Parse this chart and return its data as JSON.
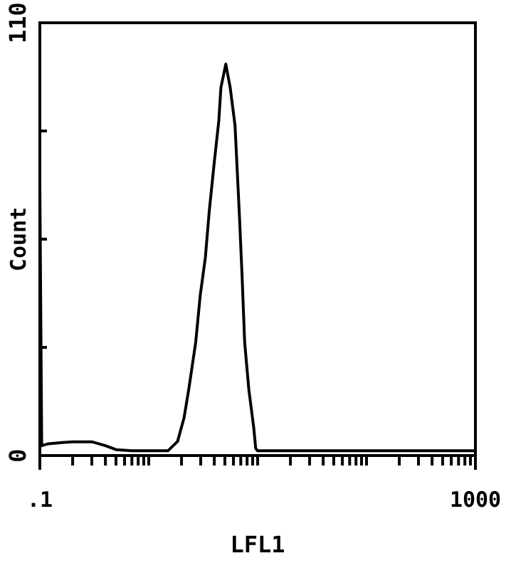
{
  "chart_data": {
    "type": "line",
    "xlabel": "LFL1",
    "ylabel": "Count",
    "log": "x",
    "xlim": [
      0.1,
      1000
    ],
    "ylim": [
      0,
      110
    ],
    "xticks": [
      {
        "value": 0.1,
        "label": ".1"
      },
      {
        "value": 0.2,
        "label": null
      },
      {
        "value": 0.3,
        "label": null
      },
      {
        "value": 0.4,
        "label": null
      },
      {
        "value": 0.5,
        "label": null
      },
      {
        "value": 0.6,
        "label": null
      },
      {
        "value": 0.7,
        "label": null
      },
      {
        "value": 0.8,
        "label": null
      },
      {
        "value": 0.9,
        "label": null
      },
      {
        "value": 1,
        "label": null
      },
      {
        "value": 2,
        "label": null
      },
      {
        "value": 3,
        "label": null
      },
      {
        "value": 4,
        "label": null
      },
      {
        "value": 5,
        "label": null
      },
      {
        "value": 6,
        "label": null
      },
      {
        "value": 7,
        "label": null
      },
      {
        "value": 8,
        "label": null
      },
      {
        "value": 9,
        "label": null
      },
      {
        "value": 10,
        "label": null
      },
      {
        "value": 20,
        "label": null
      },
      {
        "value": 30,
        "label": null
      },
      {
        "value": 40,
        "label": null
      },
      {
        "value": 50,
        "label": null
      },
      {
        "value": 60,
        "label": null
      },
      {
        "value": 70,
        "label": null
      },
      {
        "value": 80,
        "label": null
      },
      {
        "value": 90,
        "label": null
      },
      {
        "value": 100,
        "label": null
      },
      {
        "value": 200,
        "label": null
      },
      {
        "value": 300,
        "label": null
      },
      {
        "value": 400,
        "label": null
      },
      {
        "value": 500,
        "label": null
      },
      {
        "value": 600,
        "label": null
      },
      {
        "value": 700,
        "label": null
      },
      {
        "value": 800,
        "label": null
      },
      {
        "value": 900,
        "label": null
      },
      {
        "value": 1000,
        "label": "1000"
      }
    ],
    "yticks": [
      0,
      {
        "value": 27.5,
        "label": null
      },
      {
        "value": 55,
        "label": null
      },
      {
        "value": 82.5,
        "label": null
      },
      110
    ],
    "marker": "none",
    "line_style": "solid",
    "series": [
      {
        "color": "#000000",
        "x": [
          0.1,
          0.1,
          0.104,
          0.12,
          0.16,
          0.2,
          0.3,
          0.4,
          0.5,
          0.7,
          1,
          1.5,
          1.84,
          2.11,
          2.33,
          2.7,
          2.97,
          3.31,
          3.6,
          3.99,
          4.4,
          4.6,
          5.1,
          5.6,
          6.2,
          6.8,
          7.2,
          7.6,
          8.3,
          9.2,
          9.6,
          10,
          30,
          100,
          300,
          1000
        ],
        "values": [
          0,
          69,
          2.5,
          3,
          3.3,
          3.5,
          3.5,
          2.5,
          1.5,
          1.2,
          1.2,
          1.2,
          3.6,
          9.6,
          16.8,
          28.8,
          40.7,
          50.3,
          62.3,
          74.3,
          85.1,
          93.5,
          99.5,
          93.5,
          83.9,
          61.1,
          45.5,
          28.8,
          16.8,
          7.2,
          1.8,
          1.2,
          1.2,
          1.2,
          1.2,
          1.2
        ]
      }
    ]
  }
}
